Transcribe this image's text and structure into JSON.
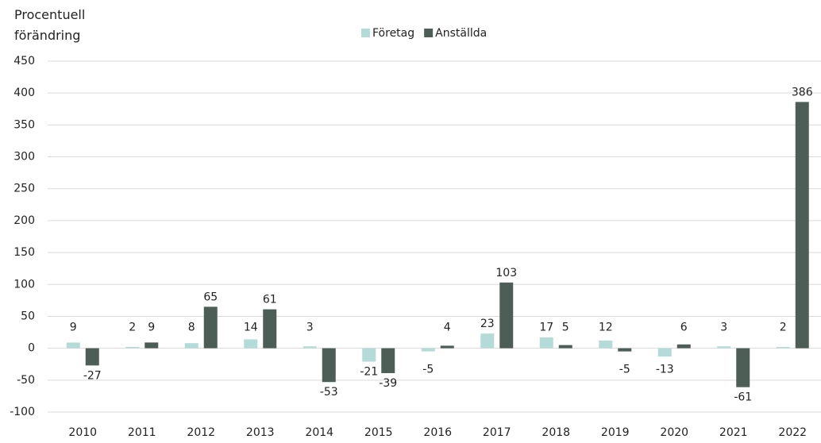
{
  "chart_data": {
    "type": "bar",
    "y_label": "Procentuell förändring",
    "categories": [
      "2010",
      "2011",
      "2012",
      "2013",
      "2014",
      "2015",
      "2016",
      "2017",
      "2018",
      "2019",
      "2020",
      "2021",
      "2022"
    ],
    "series": [
      {
        "name": "Företag",
        "color": "#b3dcd8",
        "values": [
          9,
          2,
          8,
          14,
          3,
          -21,
          -5,
          23,
          17,
          12,
          -13,
          3,
          2
        ]
      },
      {
        "name": "Anställda",
        "color": "#4d5e57",
        "values": [
          -27,
          9,
          65,
          61,
          -53,
          -39,
          4,
          103,
          5,
          -5,
          6,
          -61,
          386
        ]
      }
    ],
    "ylim": [
      -100,
      450
    ],
    "yticks": [
      -100,
      -50,
      0,
      50,
      100,
      150,
      200,
      250,
      300,
      350,
      400,
      450
    ],
    "grid": true,
    "legend": "top"
  }
}
